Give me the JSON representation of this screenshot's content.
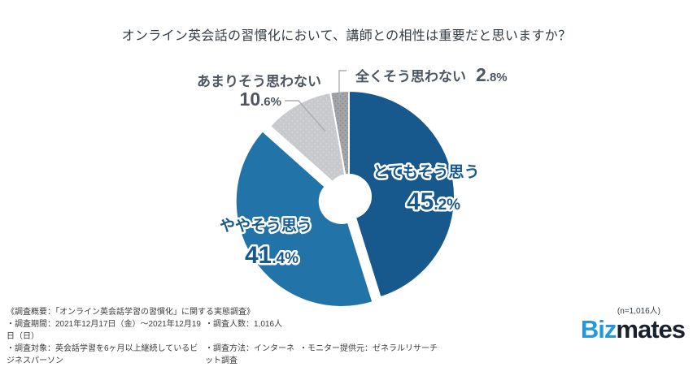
{
  "title": "オンライン英会話の習慣化において、講師との相性は重要だと思いますか？",
  "chart_data": {
    "type": "pie",
    "title": "オンライン英会話の習慣化において、講師との相性は重要だと思いますか？",
    "donut": true,
    "start_angle_deg": 0,
    "direction": "clockwise",
    "unit": "%",
    "slices": [
      {
        "label": "とてもそう思う",
        "value": 45.2,
        "color": "#17598c",
        "label_position": "inside",
        "exploded": false
      },
      {
        "label": "ややそう思う",
        "value": 41.4,
        "color": "#2173a8",
        "label_position": "inside",
        "exploded": true
      },
      {
        "label": "あまりそう思わない",
        "value": 10.6,
        "color": "#c8c9cc",
        "pattern": "dots-light",
        "label_position": "outside",
        "exploded": false
      },
      {
        "label": "全くそう思わない",
        "value": 2.8,
        "color": "#a3a4a8",
        "pattern": "dots-dark",
        "label_position": "outside",
        "exploded": false
      }
    ],
    "sample_note": "(n=1,016人)",
    "legend_position": "none"
  },
  "footer": {
    "heading": "《調査概要：「オンライン英会話学習の習慣化」に関する実態調査》",
    "row2_col1": "・調査期間：2021年12月17日（金）～2021年12月19日（日）",
    "row2_col2": "・調査人数：1,016人",
    "row3_col1": "・調査対象：英会話学習を6ヶ月以上継続しているビジネスパーソン",
    "row3_col2": "・調査方法：インターネット調査",
    "row3_col3": "・モニター提供元：ゼネラルリサーチ"
  },
  "sample_note": "(n=1,016人)",
  "logo": {
    "part1": "Biz",
    "part2": "mates",
    "part1_color": "#2598d9",
    "part2_color": "#1a212e"
  },
  "colors": {
    "title_text": "#333c44",
    "outside_label_text": "#4d5661",
    "inside_label_text": "#17598c",
    "leader_line": "#a9adb2"
  }
}
